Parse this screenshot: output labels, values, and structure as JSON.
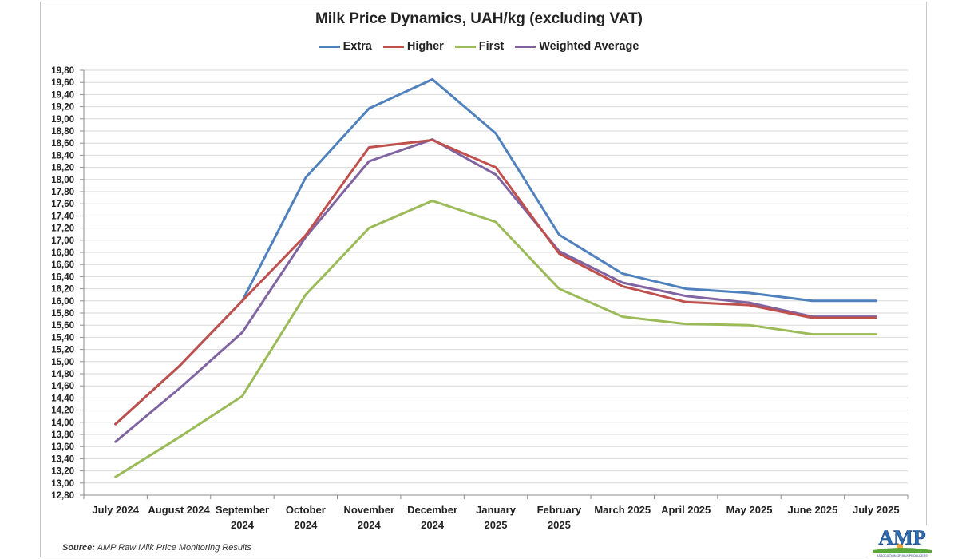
{
  "chart_data": {
    "type": "line",
    "title": "Milk Price Dynamics, UAH/kg (excluding VAT)",
    "categories": [
      "July 2024",
      "August 2024",
      "September 2024",
      "October 2024",
      "November 2024",
      "December 2024",
      "January 2025",
      "February 2025",
      "March 2025",
      "April 2025",
      "May 2025",
      "June 2025",
      "July 2025"
    ],
    "category_lines": [
      [
        "July 2024"
      ],
      [
        "August 2024"
      ],
      [
        "September",
        "2024"
      ],
      [
        "October",
        "2024"
      ],
      [
        "November",
        "2024"
      ],
      [
        "December",
        "2024"
      ],
      [
        "January",
        "2025"
      ],
      [
        "February",
        "2025"
      ],
      [
        "March 2025"
      ],
      [
        "April 2025"
      ],
      [
        "May 2025"
      ],
      [
        "June 2025"
      ],
      [
        "July 2025"
      ]
    ],
    "ylim": [
      12.8,
      19.8
    ],
    "ystep": 0.2,
    "grid": true,
    "legend_position": "top",
    "series": [
      {
        "name": "Extra",
        "color": "#4f81bd",
        "values": [
          13.97,
          14.92,
          16.0,
          18.03,
          19.17,
          19.65,
          18.76,
          17.09,
          16.45,
          16.2,
          16.13,
          16.0,
          16.0
        ]
      },
      {
        "name": "Higher",
        "color": "#c0504d",
        "values": [
          13.97,
          14.92,
          16.0,
          17.08,
          18.53,
          18.65,
          18.2,
          16.78,
          16.24,
          15.98,
          15.93,
          15.72,
          15.72
        ]
      },
      {
        "name": "First",
        "color": "#9bbb59",
        "values": [
          13.1,
          13.75,
          14.43,
          16.1,
          17.2,
          17.65,
          17.3,
          16.2,
          15.74,
          15.62,
          15.6,
          15.45,
          15.45
        ]
      },
      {
        "name": "Weighted Average",
        "color": "#8064a2",
        "values": [
          13.68,
          14.55,
          15.48,
          17.05,
          18.3,
          18.66,
          18.08,
          16.82,
          16.3,
          16.08,
          15.97,
          15.74,
          15.74
        ]
      }
    ]
  },
  "source": {
    "label": "Source:",
    "text": " AMP Raw Milk Price Monitoring Results"
  },
  "logo": {
    "text": "AMP",
    "subtext": "ASSOCIATION OF MILK PRODUCERS"
  }
}
